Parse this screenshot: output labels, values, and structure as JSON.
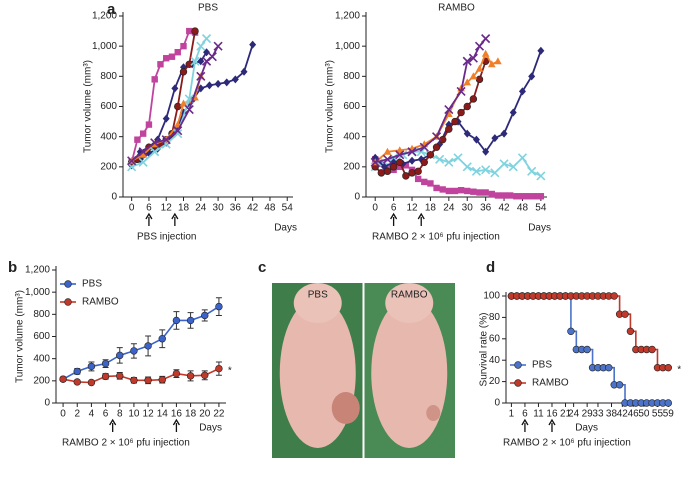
{
  "chart_data": [
    {
      "type": "line",
      "panel": "a",
      "title": "PBS",
      "ylabel": "Tumor volume (mm³)",
      "xlabel": "Days",
      "annotation": "PBS injection",
      "arrows_at": [
        6,
        15
      ],
      "xlim": [
        -3,
        56
      ],
      "xticks": [
        0,
        6,
        12,
        18,
        24,
        30,
        36,
        42,
        48,
        54
      ],
      "ylim": [
        0,
        1200
      ],
      "yticks": [
        0,
        200,
        400,
        600,
        800,
        {
          "value": 1000,
          "label": "1,000"
        },
        {
          "value": 1200,
          "label": "1,200"
        }
      ],
      "series": [
        {
          "color": "#c0449e",
          "marker": "square",
          "x": [
            0,
            2,
            4,
            6,
            8,
            10,
            12,
            14,
            16,
            18,
            20,
            22
          ],
          "values": [
            230,
            380,
            420,
            480,
            780,
            880,
            920,
            930,
            960,
            1000,
            1100,
            1090
          ]
        },
        {
          "color": "#2e2a7a",
          "marker": "diamond",
          "x": [
            0,
            3,
            6,
            9,
            12,
            15,
            18,
            21,
            24,
            26
          ],
          "values": [
            220,
            300,
            330,
            380,
            520,
            720,
            860,
            880,
            900,
            960
          ]
        },
        {
          "color": "#2e2a7a",
          "marker": "diamond",
          "x": [
            0,
            3,
            6,
            9,
            12,
            15,
            18,
            21,
            24,
            27,
            30,
            33,
            36,
            39,
            42
          ],
          "values": [
            210,
            250,
            290,
            320,
            360,
            420,
            560,
            640,
            720,
            740,
            750,
            760,
            780,
            830,
            1010
          ]
        },
        {
          "color": "#8b1a1a",
          "marker": "circle",
          "x": [
            0,
            2,
            4,
            6,
            8,
            10,
            12,
            14,
            16,
            18,
            20,
            22
          ],
          "values": [
            230,
            250,
            280,
            330,
            340,
            350,
            380,
            420,
            600,
            830,
            880,
            1100
          ]
        },
        {
          "color": "#f07f2a",
          "marker": "triangle",
          "x": [
            0,
            4,
            8,
            12,
            16,
            18,
            20,
            22,
            24
          ],
          "values": [
            240,
            280,
            350,
            380,
            480,
            620,
            640,
            660,
            800
          ]
        },
        {
          "color": "#7fd3df",
          "marker": "x",
          "x": [
            0,
            4,
            8,
            12,
            16,
            20,
            22,
            24,
            26
          ],
          "values": [
            200,
            230,
            300,
            350,
            420,
            650,
            900,
            1000,
            1050
          ]
        },
        {
          "color": "#6a2a8a",
          "marker": "x",
          "x": [
            0,
            4,
            8,
            12,
            16,
            20,
            24,
            26,
            28,
            30
          ],
          "values": [
            240,
            300,
            360,
            380,
            440,
            580,
            800,
            900,
            930,
            1000
          ]
        }
      ]
    },
    {
      "type": "line",
      "title": "RAMBO",
      "ylabel": "Tumor volume (mm³)",
      "xlabel": "Days",
      "annotation": "RAMBO 2 × 10⁶ pfu injection",
      "arrows_at": [
        6,
        15
      ],
      "xlim": [
        -3,
        56
      ],
      "xticks": [
        0,
        6,
        12,
        18,
        24,
        30,
        36,
        42,
        48,
        54
      ],
      "ylim": [
        0,
        1200
      ],
      "yticks": [
        0,
        200,
        400,
        600,
        800,
        {
          "value": 1000,
          "label": "1,000"
        },
        {
          "value": 1200,
          "label": "1,200"
        }
      ],
      "series": [
        {
          "color": "#c0449e",
          "marker": "square",
          "x": [
            0,
            2,
            4,
            6,
            8,
            10,
            12,
            14,
            16,
            18,
            20,
            22,
            24,
            26,
            28,
            30,
            32,
            34,
            36,
            38,
            40,
            42,
            44,
            46,
            48,
            50,
            52,
            54
          ],
          "values": [
            250,
            220,
            200,
            180,
            200,
            210,
            180,
            120,
            100,
            90,
            60,
            50,
            40,
            40,
            45,
            40,
            35,
            30,
            30,
            20,
            10,
            10,
            10,
            5,
            5,
            5,
            5,
            5
          ]
        },
        {
          "color": "#7fd3df",
          "marker": "x",
          "x": [
            0,
            3,
            6,
            9,
            12,
            15,
            18,
            21,
            24,
            27,
            30,
            33,
            36,
            39,
            42,
            45,
            48,
            51,
            54
          ],
          "values": [
            200,
            230,
            260,
            280,
            300,
            300,
            280,
            250,
            230,
            260,
            200,
            170,
            180,
            160,
            220,
            200,
            260,
            170,
            140
          ]
        },
        {
          "color": "#2e2a7a",
          "marker": "diamond",
          "x": [
            0,
            3,
            6,
            9,
            12,
            15,
            18,
            21,
            24,
            27,
            30,
            33,
            36,
            39,
            42,
            45,
            48,
            51,
            54
          ],
          "values": [
            260,
            200,
            230,
            220,
            240,
            250,
            280,
            350,
            480,
            500,
            420,
            380,
            300,
            390,
            420,
            560,
            700,
            800,
            970
          ]
        },
        {
          "color": "#8b1a1a",
          "marker": "circle",
          "x": [
            0,
            2,
            4,
            6,
            8,
            10,
            12,
            14,
            16,
            18,
            20,
            22,
            24,
            26,
            28,
            30,
            32,
            34,
            36
          ],
          "values": [
            200,
            160,
            170,
            200,
            230,
            140,
            160,
            170,
            230,
            280,
            330,
            380,
            450,
            500,
            560,
            600,
            650,
            780,
            900
          ]
        },
        {
          "color": "#f07f2a",
          "marker": "triangle",
          "x": [
            0,
            4,
            8,
            12,
            16,
            20,
            24,
            28,
            30,
            32,
            34,
            36,
            38,
            40
          ],
          "values": [
            230,
            300,
            310,
            320,
            350,
            400,
            550,
            720,
            760,
            800,
            850,
            950,
            880,
            900
          ]
        },
        {
          "color": "#6a2a8a",
          "marker": "x",
          "x": [
            0,
            4,
            8,
            12,
            16,
            20,
            24,
            28,
            30,
            32,
            34,
            36
          ],
          "values": [
            230,
            250,
            280,
            300,
            330,
            400,
            580,
            700,
            900,
            920,
            1000,
            1050
          ]
        }
      ]
    },
    {
      "type": "line",
      "panel": "b",
      "ylabel": "Tumor volume (mm³)",
      "xlabel": "Days",
      "annotation": "RAMBO 2 × 10⁶ pfu injection",
      "arrows_at": [
        7,
        16
      ],
      "note": "*",
      "legend": "upper left",
      "xlim": [
        -1,
        23
      ],
      "xticks": [
        0,
        2,
        4,
        6,
        8,
        10,
        12,
        14,
        16,
        18,
        20,
        22
      ],
      "ylim": [
        0,
        1200
      ],
      "yticks": [
        0,
        200,
        400,
        600,
        800,
        {
          "value": 1000,
          "label": "1,000"
        },
        {
          "value": 1200,
          "label": "1,200"
        }
      ],
      "x": [
        0,
        2,
        4,
        6,
        8,
        10,
        12,
        14,
        16,
        18,
        20,
        22
      ],
      "series": [
        {
          "name": "PBS",
          "color": "#3b63c9",
          "marker": "circle",
          "values": [
            215,
            285,
            330,
            355,
            430,
            470,
            515,
            580,
            745,
            745,
            790,
            870
          ],
          "errors": [
            15,
            25,
            40,
            35,
            70,
            65,
            90,
            80,
            80,
            70,
            50,
            80
          ]
        },
        {
          "name": "RAMBO",
          "color": "#c0392b",
          "marker": "circle",
          "values": [
            215,
            190,
            185,
            240,
            245,
            205,
            205,
            210,
            265,
            245,
            250,
            310
          ],
          "errors": [
            10,
            15,
            10,
            25,
            30,
            25,
            30,
            30,
            35,
            45,
            40,
            60
          ]
        }
      ]
    },
    {
      "type": "image",
      "panel": "c",
      "labels": [
        "PBS",
        "RAMBO"
      ]
    },
    {
      "type": "step",
      "panel": "d",
      "ylabel": "Survival rate (%)",
      "xlabel": "Days",
      "annotation": "RAMBO 2 × 10⁶ pfu injection",
      "arrows_at": [
        6,
        16
      ],
      "note": "*",
      "legend": "lower left",
      "xlim": [
        -1,
        60
      ],
      "xticks": [
        1,
        6,
        11,
        16,
        21,
        24,
        29,
        33,
        38,
        42,
        46,
        50,
        55,
        59
      ],
      "ylim": [
        0,
        100
      ],
      "yticks": [
        0,
        20,
        40,
        60,
        80,
        100
      ],
      "x": [
        1,
        3,
        5,
        7,
        9,
        11,
        13,
        15,
        17,
        19,
        21,
        23,
        25,
        27,
        29,
        31,
        33,
        35,
        37,
        39,
        41,
        43,
        45,
        47,
        49,
        51,
        53,
        55,
        57,
        59
      ],
      "series": [
        {
          "name": "PBS",
          "color": "#4a73c9",
          "marker": "circle",
          "values": [
            100,
            100,
            100,
            100,
            100,
            100,
            100,
            100,
            100,
            100,
            100,
            67,
            50,
            50,
            50,
            33,
            33,
            33,
            33,
            17,
            17,
            0,
            0,
            0,
            0,
            0,
            0,
            0,
            0,
            0
          ]
        },
        {
          "name": "RAMBO",
          "color": "#c0392b",
          "marker": "circle",
          "values": [
            100,
            100,
            100,
            100,
            100,
            100,
            100,
            100,
            100,
            100,
            100,
            100,
            100,
            100,
            100,
            100,
            100,
            100,
            100,
            100,
            83,
            83,
            67,
            50,
            50,
            50,
            50,
            33,
            33,
            33
          ]
        }
      ]
    }
  ]
}
